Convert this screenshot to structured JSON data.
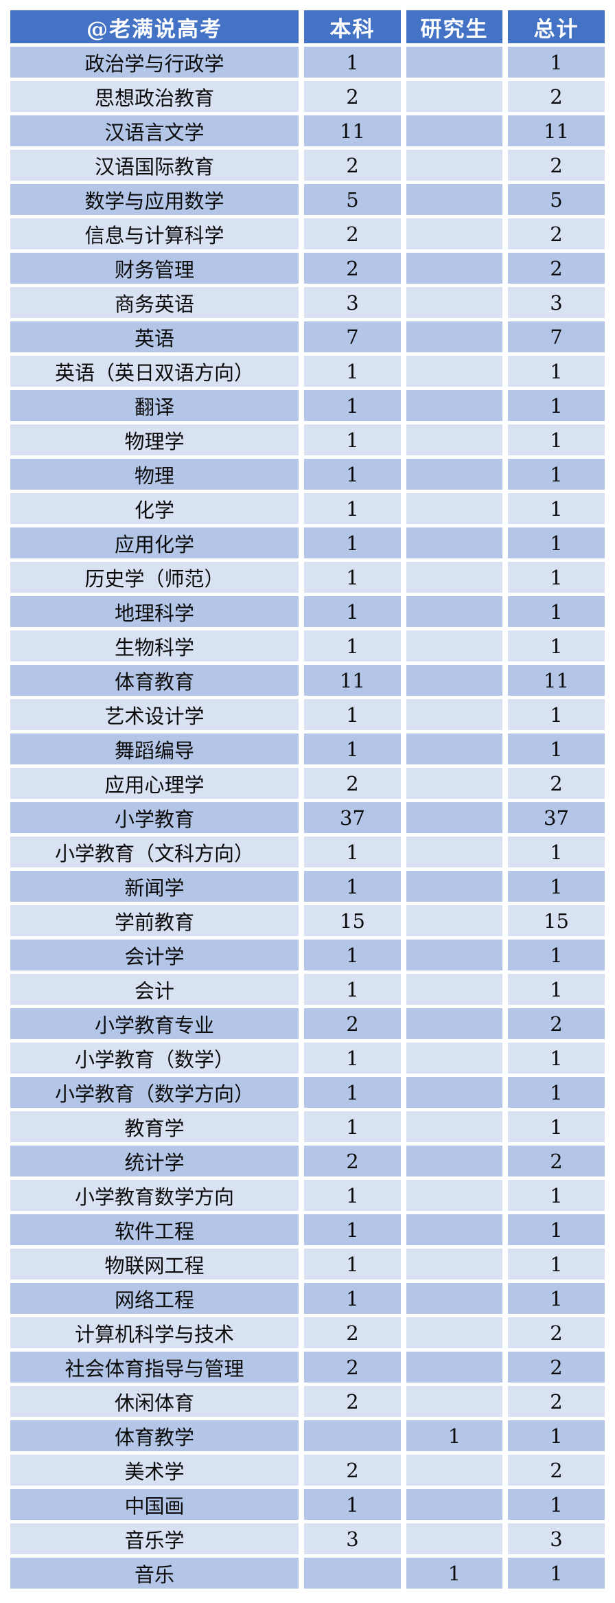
{
  "colors": {
    "header_bg": "#4472c4",
    "header_text": "#ffffff",
    "row_stripe_dark": "#b4c6e7",
    "row_stripe_light": "#d9e2f3",
    "cell_text": "#0b0b0b",
    "page_bg": "#ffffff"
  },
  "chart_data": {
    "type": "table",
    "title": "@老满说高考",
    "header": {
      "col0": "@老满说高考",
      "col1": "本科",
      "col2": "研究生",
      "col3": "总计"
    },
    "rows": [
      {
        "major": "政治学与行政学",
        "undergrad": "1",
        "graduate": "",
        "total": "1"
      },
      {
        "major": "思想政治教育",
        "undergrad": "2",
        "graduate": "",
        "total": "2"
      },
      {
        "major": "汉语言文学",
        "undergrad": "11",
        "graduate": "",
        "total": "11"
      },
      {
        "major": "汉语国际教育",
        "undergrad": "2",
        "graduate": "",
        "total": "2"
      },
      {
        "major": "数学与应用数学",
        "undergrad": "5",
        "graduate": "",
        "total": "5"
      },
      {
        "major": "信息与计算科学",
        "undergrad": "2",
        "graduate": "",
        "total": "2"
      },
      {
        "major": "财务管理",
        "undergrad": "2",
        "graduate": "",
        "total": "2"
      },
      {
        "major": "商务英语",
        "undergrad": "3",
        "graduate": "",
        "total": "3"
      },
      {
        "major": "英语",
        "undergrad": "7",
        "graduate": "",
        "total": "7"
      },
      {
        "major": "英语（英日双语方向）",
        "undergrad": "1",
        "graduate": "",
        "total": "1"
      },
      {
        "major": "翻译",
        "undergrad": "1",
        "graduate": "",
        "total": "1"
      },
      {
        "major": "物理学",
        "undergrad": "1",
        "graduate": "",
        "total": "1"
      },
      {
        "major": "物理",
        "undergrad": "1",
        "graduate": "",
        "total": "1"
      },
      {
        "major": "化学",
        "undergrad": "1",
        "graduate": "",
        "total": "1"
      },
      {
        "major": "应用化学",
        "undergrad": "1",
        "graduate": "",
        "total": "1"
      },
      {
        "major": "历史学（师范）",
        "undergrad": "1",
        "graduate": "",
        "total": "1"
      },
      {
        "major": "地理科学",
        "undergrad": "1",
        "graduate": "",
        "total": "1"
      },
      {
        "major": "生物科学",
        "undergrad": "1",
        "graduate": "",
        "total": "1"
      },
      {
        "major": "体育教育",
        "undergrad": "11",
        "graduate": "",
        "total": "11"
      },
      {
        "major": "艺术设计学",
        "undergrad": "1",
        "graduate": "",
        "total": "1"
      },
      {
        "major": "舞蹈编导",
        "undergrad": "1",
        "graduate": "",
        "total": "1"
      },
      {
        "major": "应用心理学",
        "undergrad": "2",
        "graduate": "",
        "total": "2"
      },
      {
        "major": "小学教育",
        "undergrad": "37",
        "graduate": "",
        "total": "37"
      },
      {
        "major": "小学教育（文科方向）",
        "undergrad": "1",
        "graduate": "",
        "total": "1"
      },
      {
        "major": "新闻学",
        "undergrad": "1",
        "graduate": "",
        "total": "1"
      },
      {
        "major": "学前教育",
        "undergrad": "15",
        "graduate": "",
        "total": "15"
      },
      {
        "major": "会计学",
        "undergrad": "1",
        "graduate": "",
        "total": "1"
      },
      {
        "major": "会计",
        "undergrad": "1",
        "graduate": "",
        "total": "1"
      },
      {
        "major": "小学教育专业",
        "undergrad": "2",
        "graduate": "",
        "total": "2"
      },
      {
        "major": "小学教育（数学）",
        "undergrad": "1",
        "graduate": "",
        "total": "1"
      },
      {
        "major": "小学教育（数学方向）",
        "undergrad": "1",
        "graduate": "",
        "total": "1"
      },
      {
        "major": "教育学",
        "undergrad": "1",
        "graduate": "",
        "total": "1"
      },
      {
        "major": "统计学",
        "undergrad": "2",
        "graduate": "",
        "total": "2"
      },
      {
        "major": "小学教育数学方向",
        "undergrad": "1",
        "graduate": "",
        "total": "1"
      },
      {
        "major": "软件工程",
        "undergrad": "1",
        "graduate": "",
        "total": "1"
      },
      {
        "major": "物联网工程",
        "undergrad": "1",
        "graduate": "",
        "total": "1"
      },
      {
        "major": "网络工程",
        "undergrad": "1",
        "graduate": "",
        "total": "1"
      },
      {
        "major": "计算机科学与技术",
        "undergrad": "2",
        "graduate": "",
        "total": "2"
      },
      {
        "major": "社会体育指导与管理",
        "undergrad": "2",
        "graduate": "",
        "total": "2"
      },
      {
        "major": "休闲体育",
        "undergrad": "2",
        "graduate": "",
        "total": "2"
      },
      {
        "major": "体育教学",
        "undergrad": "",
        "graduate": "1",
        "total": "1"
      },
      {
        "major": "美术学",
        "undergrad": "2",
        "graduate": "",
        "total": "2"
      },
      {
        "major": "中国画",
        "undergrad": "1",
        "graduate": "",
        "total": "1"
      },
      {
        "major": "音乐学",
        "undergrad": "3",
        "graduate": "",
        "total": "3"
      },
      {
        "major": "音乐",
        "undergrad": "",
        "graduate": "1",
        "total": "1"
      }
    ]
  }
}
